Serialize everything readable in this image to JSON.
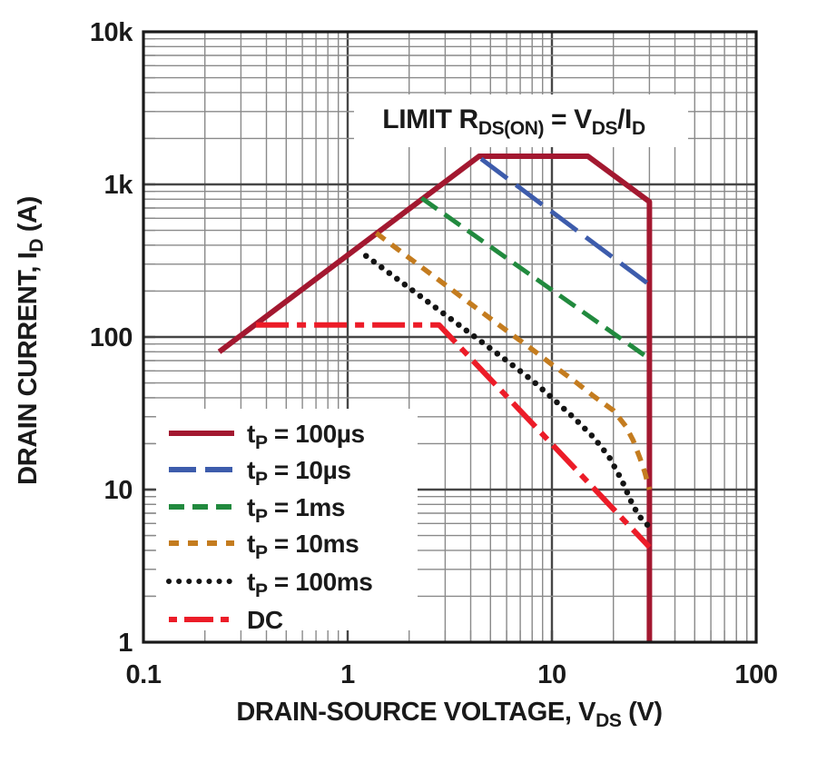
{
  "chart_data": {
    "type": "line",
    "annotation": {
      "pre": "LIMIT R",
      "sub1": "DS(ON)",
      "mid": " = V",
      "sub2": "DS",
      "mid2": "/I",
      "sub3": "D"
    },
    "xlabel": {
      "pre": "DRAIN-SOURCE VOLTAGE, V",
      "sub": "DS",
      "post": " (V)"
    },
    "ylabel": {
      "pre": "DRAIN CURRENT, I",
      "sub": "D",
      "post": " (A)"
    },
    "x_axis": {
      "scale": "log",
      "range": [
        0.1,
        100
      ],
      "tick_labels": [
        "0.1",
        "1",
        "10",
        "100"
      ],
      "tick_values": [
        0.1,
        1,
        10,
        100
      ],
      "minor_grid": true
    },
    "y_axis": {
      "scale": "log",
      "range": [
        1,
        10000
      ],
      "tick_labels": [
        "10k",
        "1k",
        "100",
        "10",
        "1"
      ],
      "tick_values": [
        10000,
        1000,
        100,
        10,
        1
      ],
      "minor_grid": true
    },
    "legend_position": "bottom-left",
    "series": [
      {
        "name": "tp-100us",
        "legend": {
          "pre": "t",
          "sub": "P",
          "post": " = 100µs"
        },
        "color": "#a31830",
        "style": "solid",
        "points": [
          [
            0.235,
            80
          ],
          [
            4.4,
            1530
          ],
          [
            15,
            1530
          ],
          [
            30,
            770
          ],
          [
            30,
            1
          ]
        ]
      },
      {
        "name": "tp-10us",
        "legend": {
          "pre": "t",
          "sub": "P",
          "post": " = 10µs"
        },
        "color": "#3d5cac",
        "style": "long-dash",
        "points": [
          [
            4.5,
            1470
          ],
          [
            30,
            220
          ]
        ]
      },
      {
        "name": "tp-1ms",
        "legend": {
          "pre": "t",
          "sub": "P",
          "post": " = 1ms"
        },
        "color": "#218a3e",
        "style": "dash",
        "points": [
          [
            2.3,
            813
          ],
          [
            30,
            72
          ]
        ]
      },
      {
        "name": "tp-10ms",
        "legend": {
          "pre": "t",
          "sub": "P",
          "post": " = 10ms"
        },
        "color": "#c47c1f",
        "style": "short-dash",
        "points": [
          [
            1.38,
            480
          ],
          [
            2,
            330
          ],
          [
            3,
            220
          ],
          [
            4,
            165
          ],
          [
            6,
            110
          ],
          [
            8,
            83
          ],
          [
            10,
            66
          ],
          [
            13,
            51
          ],
          [
            16,
            41
          ],
          [
            20,
            33
          ],
          [
            23,
            26
          ],
          [
            25,
            21
          ],
          [
            27,
            16
          ],
          [
            28.5,
            13
          ],
          [
            30,
            10
          ]
        ]
      },
      {
        "name": "tp-100ms",
        "legend": {
          "pre": "t",
          "sub": "P",
          "post": " = 100ms"
        },
        "color": "#141414",
        "style": "dotted",
        "points": [
          [
            1.23,
            340
          ],
          [
            1.6,
            262
          ],
          [
            2,
            210
          ],
          [
            3,
            140
          ],
          [
            4,
            105
          ],
          [
            6,
            70
          ],
          [
            8,
            52
          ],
          [
            10,
            40
          ],
          [
            13,
            29
          ],
          [
            16,
            22
          ],
          [
            19,
            16.5
          ],
          [
            22,
            11.5
          ],
          [
            25,
            7.8
          ],
          [
            27.5,
            6.4
          ],
          [
            30,
            5.7
          ]
        ]
      },
      {
        "name": "dc",
        "legend": {
          "pre": "DC",
          "sub": "",
          "post": ""
        },
        "color": "#ec1c28",
        "style": "dash-dot",
        "points": [
          [
            0.356,
            120
          ],
          [
            2.8,
            120
          ],
          [
            30,
            4.2
          ]
        ]
      }
    ]
  }
}
